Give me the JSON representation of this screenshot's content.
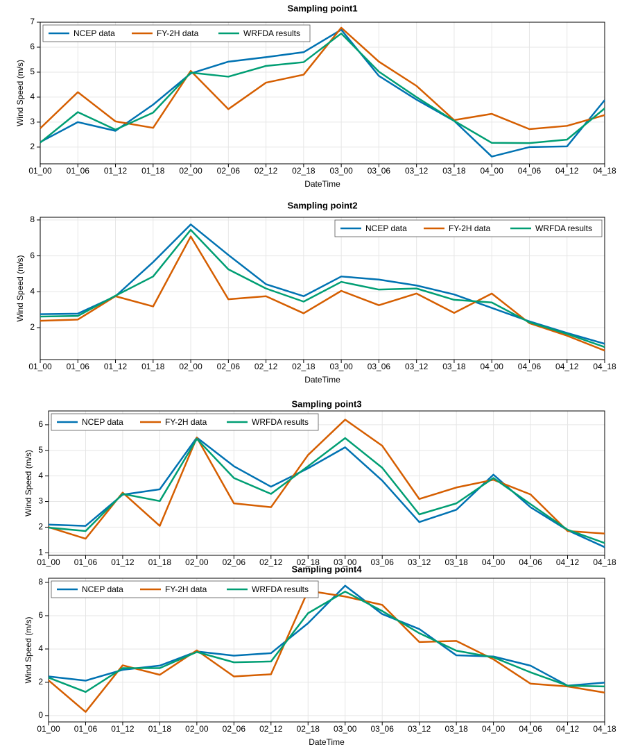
{
  "chart_data": [
    {
      "type": "line",
      "title": "Sampling point1",
      "x_label": "DateTime",
      "y_label": "Wind Speed (m/s)",
      "categories": [
        "01_00",
        "01_06",
        "01_12",
        "01_18",
        "02_00",
        "02_06",
        "02_12",
        "02_18",
        "03_00",
        "03_06",
        "03_12",
        "03_18",
        "04_00",
        "04_06",
        "04_12",
        "04_18"
      ],
      "series": [
        {
          "name": "NCEP data",
          "color": "#0072b2",
          "values": [
            2.2,
            3.0,
            2.65,
            3.7,
            4.95,
            5.42,
            5.6,
            5.8,
            6.7,
            4.85,
            3.9,
            3.05,
            1.62,
            2.0,
            2.03,
            3.88
          ]
        },
        {
          "name": "FY-2H data",
          "color": "#d55e00",
          "values": [
            2.75,
            4.2,
            3.03,
            2.77,
            5.05,
            3.52,
            4.58,
            4.9,
            6.78,
            5.42,
            4.45,
            3.08,
            3.33,
            2.72,
            2.85,
            3.28
          ]
        },
        {
          "name": "WRFDA results",
          "color": "#009e73",
          "values": [
            2.18,
            3.4,
            2.7,
            3.38,
            4.98,
            4.82,
            5.25,
            5.4,
            6.55,
            5.02,
            4.0,
            3.05,
            2.17,
            2.16,
            2.3,
            3.55
          ]
        }
      ],
      "ylim": [
        1.33,
        7
      ],
      "yticks": [
        2,
        3,
        4,
        5,
        6,
        7
      ],
      "grid": true,
      "legend": "upper left"
    },
    {
      "type": "line",
      "title": "Sampling point2",
      "x_label": "DateTime",
      "y_label": "Wind Speed (m/s)",
      "categories": [
        "01_00",
        "01_06",
        "01_12",
        "01_18",
        "02_00",
        "02_06",
        "02_12",
        "02_18",
        "03_00",
        "03_06",
        "03_12",
        "03_18",
        "04_00",
        "04_06",
        "04_12",
        "04_18"
      ],
      "series": [
        {
          "name": "NCEP data",
          "color": "#0072b2",
          "values": [
            2.75,
            2.78,
            3.75,
            5.65,
            7.75,
            6.05,
            4.42,
            3.75,
            4.85,
            4.68,
            4.35,
            3.85,
            3.1,
            2.35,
            1.7,
            1.1
          ]
        },
        {
          "name": "FY-2H data",
          "color": "#d55e00",
          "values": [
            2.38,
            2.45,
            3.75,
            3.18,
            7.08,
            3.58,
            3.75,
            2.8,
            4.05,
            3.25,
            3.9,
            2.82,
            3.9,
            2.25,
            1.55,
            0.72
          ]
        },
        {
          "name": "WRFDA results",
          "color": "#009e73",
          "values": [
            2.62,
            2.65,
            3.78,
            4.85,
            7.45,
            5.25,
            4.18,
            3.45,
            4.55,
            4.12,
            4.18,
            3.55,
            3.4,
            2.3,
            1.65,
            0.92
          ]
        }
      ],
      "ylim": [
        0.22,
        8.15
      ],
      "yticks": [
        2,
        4,
        6,
        8
      ],
      "grid": true,
      "legend": "upper right"
    },
    {
      "type": "line",
      "title": "Sampling point3",
      "y_label": "Wind Speed (m/s)",
      "categories": [
        "01_00",
        "01_06",
        "01_12",
        "01_18",
        "02_00",
        "02_06",
        "02_12",
        "02_18",
        "03_00",
        "03_06",
        "03_12",
        "03_18",
        "04_00",
        "04_06",
        "04_12",
        "04_18"
      ],
      "series": [
        {
          "name": "NCEP data",
          "color": "#0072b2",
          "values": [
            2.1,
            2.05,
            3.27,
            3.48,
            5.5,
            4.38,
            3.58,
            4.3,
            5.12,
            3.82,
            2.2,
            2.68,
            4.05,
            2.78,
            1.88,
            1.22
          ]
        },
        {
          "name": "FY-2H data",
          "color": "#d55e00",
          "values": [
            2.0,
            1.55,
            3.35,
            2.05,
            5.5,
            2.93,
            2.78,
            4.82,
            6.2,
            5.18,
            3.1,
            3.55,
            3.85,
            3.28,
            1.85,
            1.75
          ]
        },
        {
          "name": "WRFDA results",
          "color": "#009e73",
          "values": [
            1.98,
            1.85,
            3.3,
            3.02,
            5.45,
            3.92,
            3.3,
            4.38,
            5.48,
            4.32,
            2.5,
            2.93,
            3.92,
            2.9,
            1.9,
            1.38
          ]
        }
      ],
      "ylim": [
        0.9,
        6.54
      ],
      "yticks": [
        1,
        2,
        3,
        4,
        5,
        6
      ],
      "grid": true,
      "legend": "upper left"
    },
    {
      "type": "line",
      "title": "Sampling point4",
      "x_label": "DateTime",
      "y_label": "Wind Speed (m/s)",
      "categories": [
        "01_00",
        "01_06",
        "01_12",
        "01_18",
        "02_00",
        "02_06",
        "02_12",
        "02_18",
        "03_00",
        "03_06",
        "03_12",
        "03_18",
        "04_00",
        "04_06",
        "04_12",
        "04_18"
      ],
      "series": [
        {
          "name": "NCEP data",
          "color": "#0072b2",
          "values": [
            2.35,
            2.1,
            2.75,
            3.0,
            3.85,
            3.6,
            3.75,
            5.55,
            7.8,
            6.1,
            5.2,
            3.62,
            3.55,
            3.0,
            1.8,
            1.98
          ]
        },
        {
          "name": "FY-2H data",
          "color": "#d55e00",
          "values": [
            2.12,
            0.22,
            3.02,
            2.45,
            3.92,
            2.35,
            2.48,
            7.5,
            7.15,
            6.65,
            4.42,
            4.48,
            3.38,
            1.92,
            1.75,
            1.38
          ]
        },
        {
          "name": "WRFDA results",
          "color": "#009e73",
          "values": [
            2.28,
            1.42,
            2.85,
            2.85,
            3.82,
            3.2,
            3.25,
            6.15,
            7.45,
            6.28,
            4.95,
            3.9,
            3.5,
            2.6,
            1.8,
            1.75
          ]
        }
      ],
      "ylim": [
        -0.38,
        8.25
      ],
      "yticks": [
        0,
        2,
        4,
        6,
        8
      ],
      "grid": true,
      "legend": "upper left"
    }
  ]
}
